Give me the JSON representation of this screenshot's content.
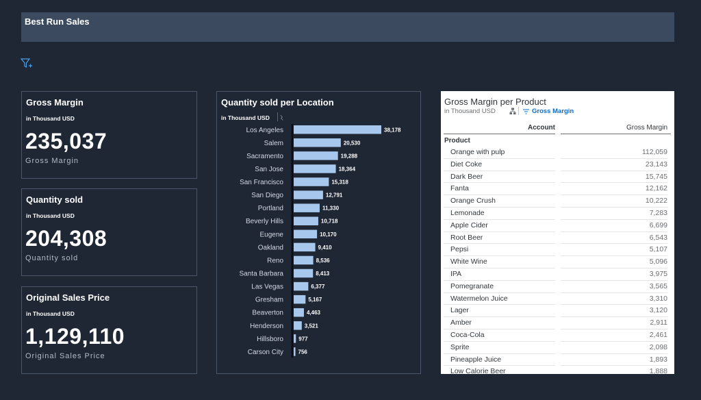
{
  "header": {
    "title": "Best Run Sales"
  },
  "kpis": [
    {
      "title": "Gross Margin",
      "subtitle": "in Thousand USD",
      "value": "235,037",
      "label": "Gross Margin"
    },
    {
      "title": "Quantity sold",
      "subtitle": "in Thousand USD",
      "value": "204,308",
      "label": "Quantity sold"
    },
    {
      "title": "Original Sales Price",
      "subtitle": "in Thousand USD",
      "value": "1,129,110",
      "label": "Original Sales Price"
    }
  ],
  "location_chart": {
    "title": "Quantity sold per Location",
    "subtitle": "in Thousand USD"
  },
  "chart_data": {
    "type": "bar",
    "orientation": "horizontal",
    "title": "Quantity sold per Location",
    "subtitle": "in Thousand USD",
    "categories": [
      "Los Angeles",
      "Salem",
      "Sacramento",
      "San Jose",
      "San Francisco",
      "San Diego",
      "Portland",
      "Beverly Hills",
      "Eugene",
      "Oakland",
      "Reno",
      "Santa Barbara",
      "Las Vegas",
      "Gresham",
      "Beaverton",
      "Henderson",
      "Hillsboro",
      "Carson City"
    ],
    "values": [
      38178,
      20530,
      19288,
      18364,
      15318,
      12791,
      11330,
      10718,
      10170,
      9410,
      8536,
      8413,
      6377,
      5167,
      4463,
      3521,
      977,
      756
    ],
    "value_labels": [
      "38,178",
      "20,530",
      "19,288",
      "18,364",
      "15,318",
      "12,791",
      "11,330",
      "10,718",
      "10,170",
      "9,410",
      "8,536",
      "8,413",
      "6,377",
      "5,167",
      "4,463",
      "3,521",
      "977",
      "756"
    ],
    "bar_color": "#a7c7ec",
    "grid": false
  },
  "product_table": {
    "title": "Gross Margin per Product",
    "subtitle": "in Thousand USD",
    "filter_label": "Gross Margin",
    "col_account": "Account",
    "col_measure": "Gross Margin",
    "dimension": "Product",
    "rows": [
      {
        "name": "Orange with pulp",
        "value": "112,059"
      },
      {
        "name": "Diet Coke",
        "value": "23,143"
      },
      {
        "name": "Dark Beer",
        "value": "15,745"
      },
      {
        "name": "Fanta",
        "value": "12,162"
      },
      {
        "name": "Orange Crush",
        "value": "10,222"
      },
      {
        "name": "Lemonade",
        "value": "7,283"
      },
      {
        "name": "Apple Cider",
        "value": "6,699"
      },
      {
        "name": "Root Beer",
        "value": "6,543"
      },
      {
        "name": "Pepsi",
        "value": "5,107"
      },
      {
        "name": "White Wine",
        "value": "5,096"
      },
      {
        "name": "IPA",
        "value": "3,975"
      },
      {
        "name": "Pomegranate",
        "value": "3,565"
      },
      {
        "name": "Watermelon Juice",
        "value": "3,310"
      },
      {
        "name": "Lager",
        "value": "3,120"
      },
      {
        "name": "Amber",
        "value": "2,911"
      },
      {
        "name": "Coca-Cola",
        "value": "2,461"
      },
      {
        "name": "Sprite",
        "value": "2,098"
      },
      {
        "name": "Pineapple Juice",
        "value": "1,893"
      },
      {
        "name": "Low Calorie Beer",
        "value": "1,888"
      }
    ]
  },
  "colors": {
    "background": "#1f2634",
    "header": "#3b4a5f",
    "accent": "#0a6ed1"
  },
  "icons": {
    "filter": "filter-add-icon",
    "hierarchy": "hierarchy-icon",
    "sort": "sort-icon"
  }
}
